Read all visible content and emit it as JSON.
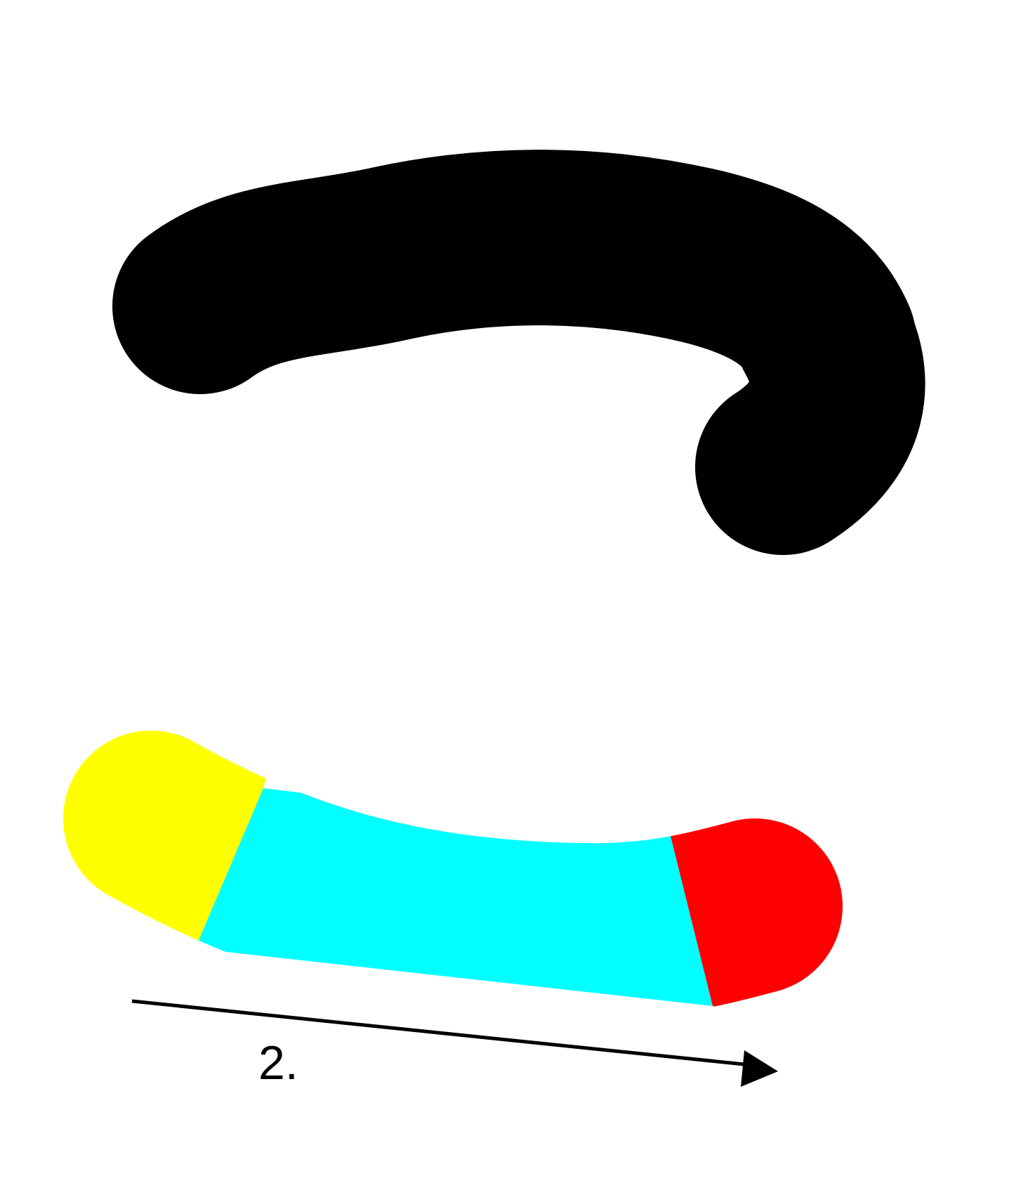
{
  "colors": {
    "background": "#ffffff",
    "top_stroke": "#000000",
    "segment_start": "#ffff00",
    "segment_middle": "#00ffff",
    "segment_end": "#ff0000",
    "arrow": "#000000",
    "label": "#000000"
  },
  "bottom_stroke": {
    "segments": [
      "start",
      "middle",
      "end"
    ]
  },
  "direction_arrow": {
    "label": "2."
  }
}
